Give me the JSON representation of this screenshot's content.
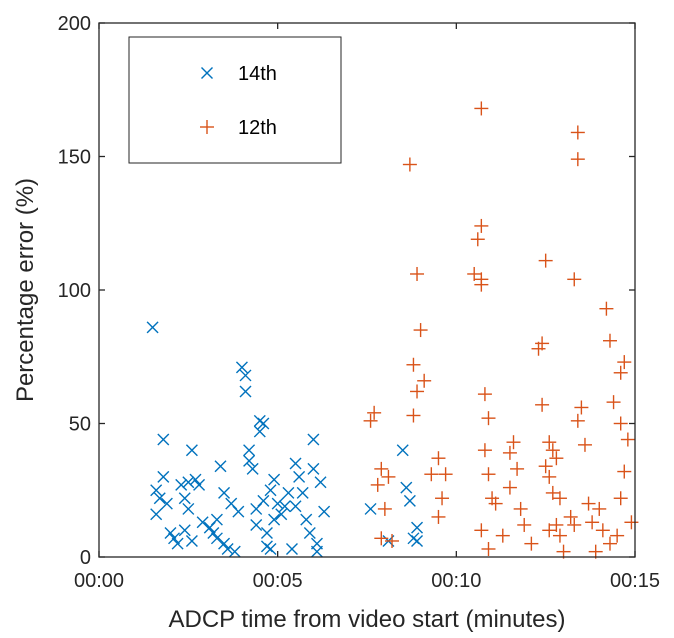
{
  "chart_data": {
    "type": "scatter",
    "title": "",
    "xlabel": "ADCP time from video start (minutes)",
    "ylabel": "Percentage error (%)",
    "xlim": [
      0,
      15
    ],
    "ylim": [
      0,
      200
    ],
    "xticks": [
      0,
      5,
      10,
      15
    ],
    "xtick_labels": [
      "00:00",
      "00:05",
      "00:10",
      "00:15"
    ],
    "yticks": [
      0,
      50,
      100,
      150,
      200
    ],
    "ytick_labels": [
      "0",
      "50",
      "100",
      "150",
      "200"
    ],
    "grid": false,
    "legend_position": "top-left",
    "series": [
      {
        "name": "14th",
        "marker": "x",
        "color": "#0072BD",
        "points": [
          [
            1.5,
            86
          ],
          [
            1.8,
            44
          ],
          [
            1.6,
            25
          ],
          [
            1.7,
            22
          ],
          [
            1.6,
            16
          ],
          [
            1.9,
            20
          ],
          [
            2.0,
            9
          ],
          [
            2.1,
            7
          ],
          [
            2.2,
            5
          ],
          [
            1.8,
            30
          ],
          [
            2.3,
            27
          ],
          [
            2.4,
            22
          ],
          [
            2.5,
            28
          ],
          [
            2.6,
            40
          ],
          [
            2.5,
            18
          ],
          [
            2.7,
            29
          ],
          [
            2.8,
            27
          ],
          [
            2.6,
            6
          ],
          [
            2.9,
            13
          ],
          [
            2.4,
            10
          ],
          [
            3.1,
            11
          ],
          [
            3.2,
            9
          ],
          [
            3.3,
            7
          ],
          [
            3.4,
            34
          ],
          [
            3.5,
            5
          ],
          [
            3.6,
            3
          ],
          [
            3.5,
            24
          ],
          [
            3.7,
            20
          ],
          [
            3.3,
            14
          ],
          [
            3.8,
            2
          ],
          [
            3.9,
            17
          ],
          [
            4.0,
            71
          ],
          [
            4.1,
            68
          ],
          [
            4.1,
            62
          ],
          [
            4.2,
            36
          ],
          [
            4.3,
            33
          ],
          [
            4.2,
            40
          ],
          [
            4.4,
            18
          ],
          [
            4.5,
            51
          ],
          [
            4.6,
            50
          ],
          [
            4.5,
            47
          ],
          [
            4.6,
            21
          ],
          [
            4.4,
            12
          ],
          [
            4.7,
            9
          ],
          [
            4.7,
            4
          ],
          [
            4.8,
            3
          ],
          [
            4.9,
            14
          ],
          [
            4.8,
            25
          ],
          [
            4.9,
            29
          ],
          [
            5.0,
            20
          ],
          [
            5.1,
            16
          ],
          [
            5.2,
            19
          ],
          [
            5.3,
            24
          ],
          [
            5.4,
            3
          ],
          [
            5.5,
            35
          ],
          [
            5.5,
            19
          ],
          [
            5.6,
            30
          ],
          [
            5.7,
            24
          ],
          [
            5.8,
            14
          ],
          [
            5.9,
            9
          ],
          [
            6.0,
            44
          ],
          [
            6.0,
            33
          ],
          [
            6.1,
            5
          ],
          [
            6.1,
            2
          ],
          [
            6.2,
            28
          ],
          [
            6.3,
            17
          ],
          [
            7.6,
            18
          ],
          [
            8.1,
            6
          ],
          [
            8.5,
            40
          ],
          [
            8.6,
            26
          ],
          [
            8.7,
            21
          ],
          [
            8.8,
            7
          ],
          [
            8.9,
            11
          ],
          [
            8.9,
            6
          ]
        ]
      },
      {
        "name": "12th",
        "marker": "+",
        "color": "#D95319",
        "points": [
          [
            7.7,
            54
          ],
          [
            7.6,
            51
          ],
          [
            7.9,
            33
          ],
          [
            7.8,
            27
          ],
          [
            8.0,
            18
          ],
          [
            7.9,
            7
          ],
          [
            8.2,
            6
          ],
          [
            8.1,
            30
          ],
          [
            8.7,
            147
          ],
          [
            8.9,
            106
          ],
          [
            9.0,
            85
          ],
          [
            8.8,
            72
          ],
          [
            9.1,
            66
          ],
          [
            8.9,
            62
          ],
          [
            8.8,
            53
          ],
          [
            9.3,
            31
          ],
          [
            9.5,
            37
          ],
          [
            9.6,
            22
          ],
          [
            9.5,
            15
          ],
          [
            9.7,
            31
          ],
          [
            10.7,
            168
          ],
          [
            10.7,
            124
          ],
          [
            10.6,
            119
          ],
          [
            10.5,
            106
          ],
          [
            10.7,
            104
          ],
          [
            10.7,
            102
          ],
          [
            10.8,
            61
          ],
          [
            10.9,
            52
          ],
          [
            10.8,
            40
          ],
          [
            10.9,
            31
          ],
          [
            11.0,
            22
          ],
          [
            11.1,
            20
          ],
          [
            10.7,
            10
          ],
          [
            10.9,
            3
          ],
          [
            11.3,
            8
          ],
          [
            11.5,
            39
          ],
          [
            11.6,
            43
          ],
          [
            11.7,
            33
          ],
          [
            11.5,
            26
          ],
          [
            11.8,
            18
          ],
          [
            11.9,
            12
          ],
          [
            12.1,
            5
          ],
          [
            12.3,
            78
          ],
          [
            12.4,
            80
          ],
          [
            12.5,
            111
          ],
          [
            12.4,
            57
          ],
          [
            12.6,
            43
          ],
          [
            12.7,
            40
          ],
          [
            12.5,
            34
          ],
          [
            12.6,
            30
          ],
          [
            12.8,
            37
          ],
          [
            12.7,
            24
          ],
          [
            12.9,
            22
          ],
          [
            12.8,
            12
          ],
          [
            12.6,
            10
          ],
          [
            12.9,
            8
          ],
          [
            13.0,
            2
          ],
          [
            13.2,
            15
          ],
          [
            13.3,
            12
          ],
          [
            13.4,
            159
          ],
          [
            13.4,
            149
          ],
          [
            13.3,
            104
          ],
          [
            13.5,
            56
          ],
          [
            13.4,
            51
          ],
          [
            13.6,
            42
          ],
          [
            13.7,
            20
          ],
          [
            13.8,
            13
          ],
          [
            14.0,
            18
          ],
          [
            14.1,
            10
          ],
          [
            14.2,
            93
          ],
          [
            14.3,
            81
          ],
          [
            14.4,
            58
          ],
          [
            14.6,
            50
          ],
          [
            14.7,
            73
          ],
          [
            14.6,
            69
          ],
          [
            14.8,
            44
          ],
          [
            14.7,
            32
          ],
          [
            14.6,
            22
          ],
          [
            14.9,
            13
          ],
          [
            14.5,
            8
          ],
          [
            14.3,
            5
          ],
          [
            13.9,
            2
          ]
        ]
      }
    ]
  }
}
